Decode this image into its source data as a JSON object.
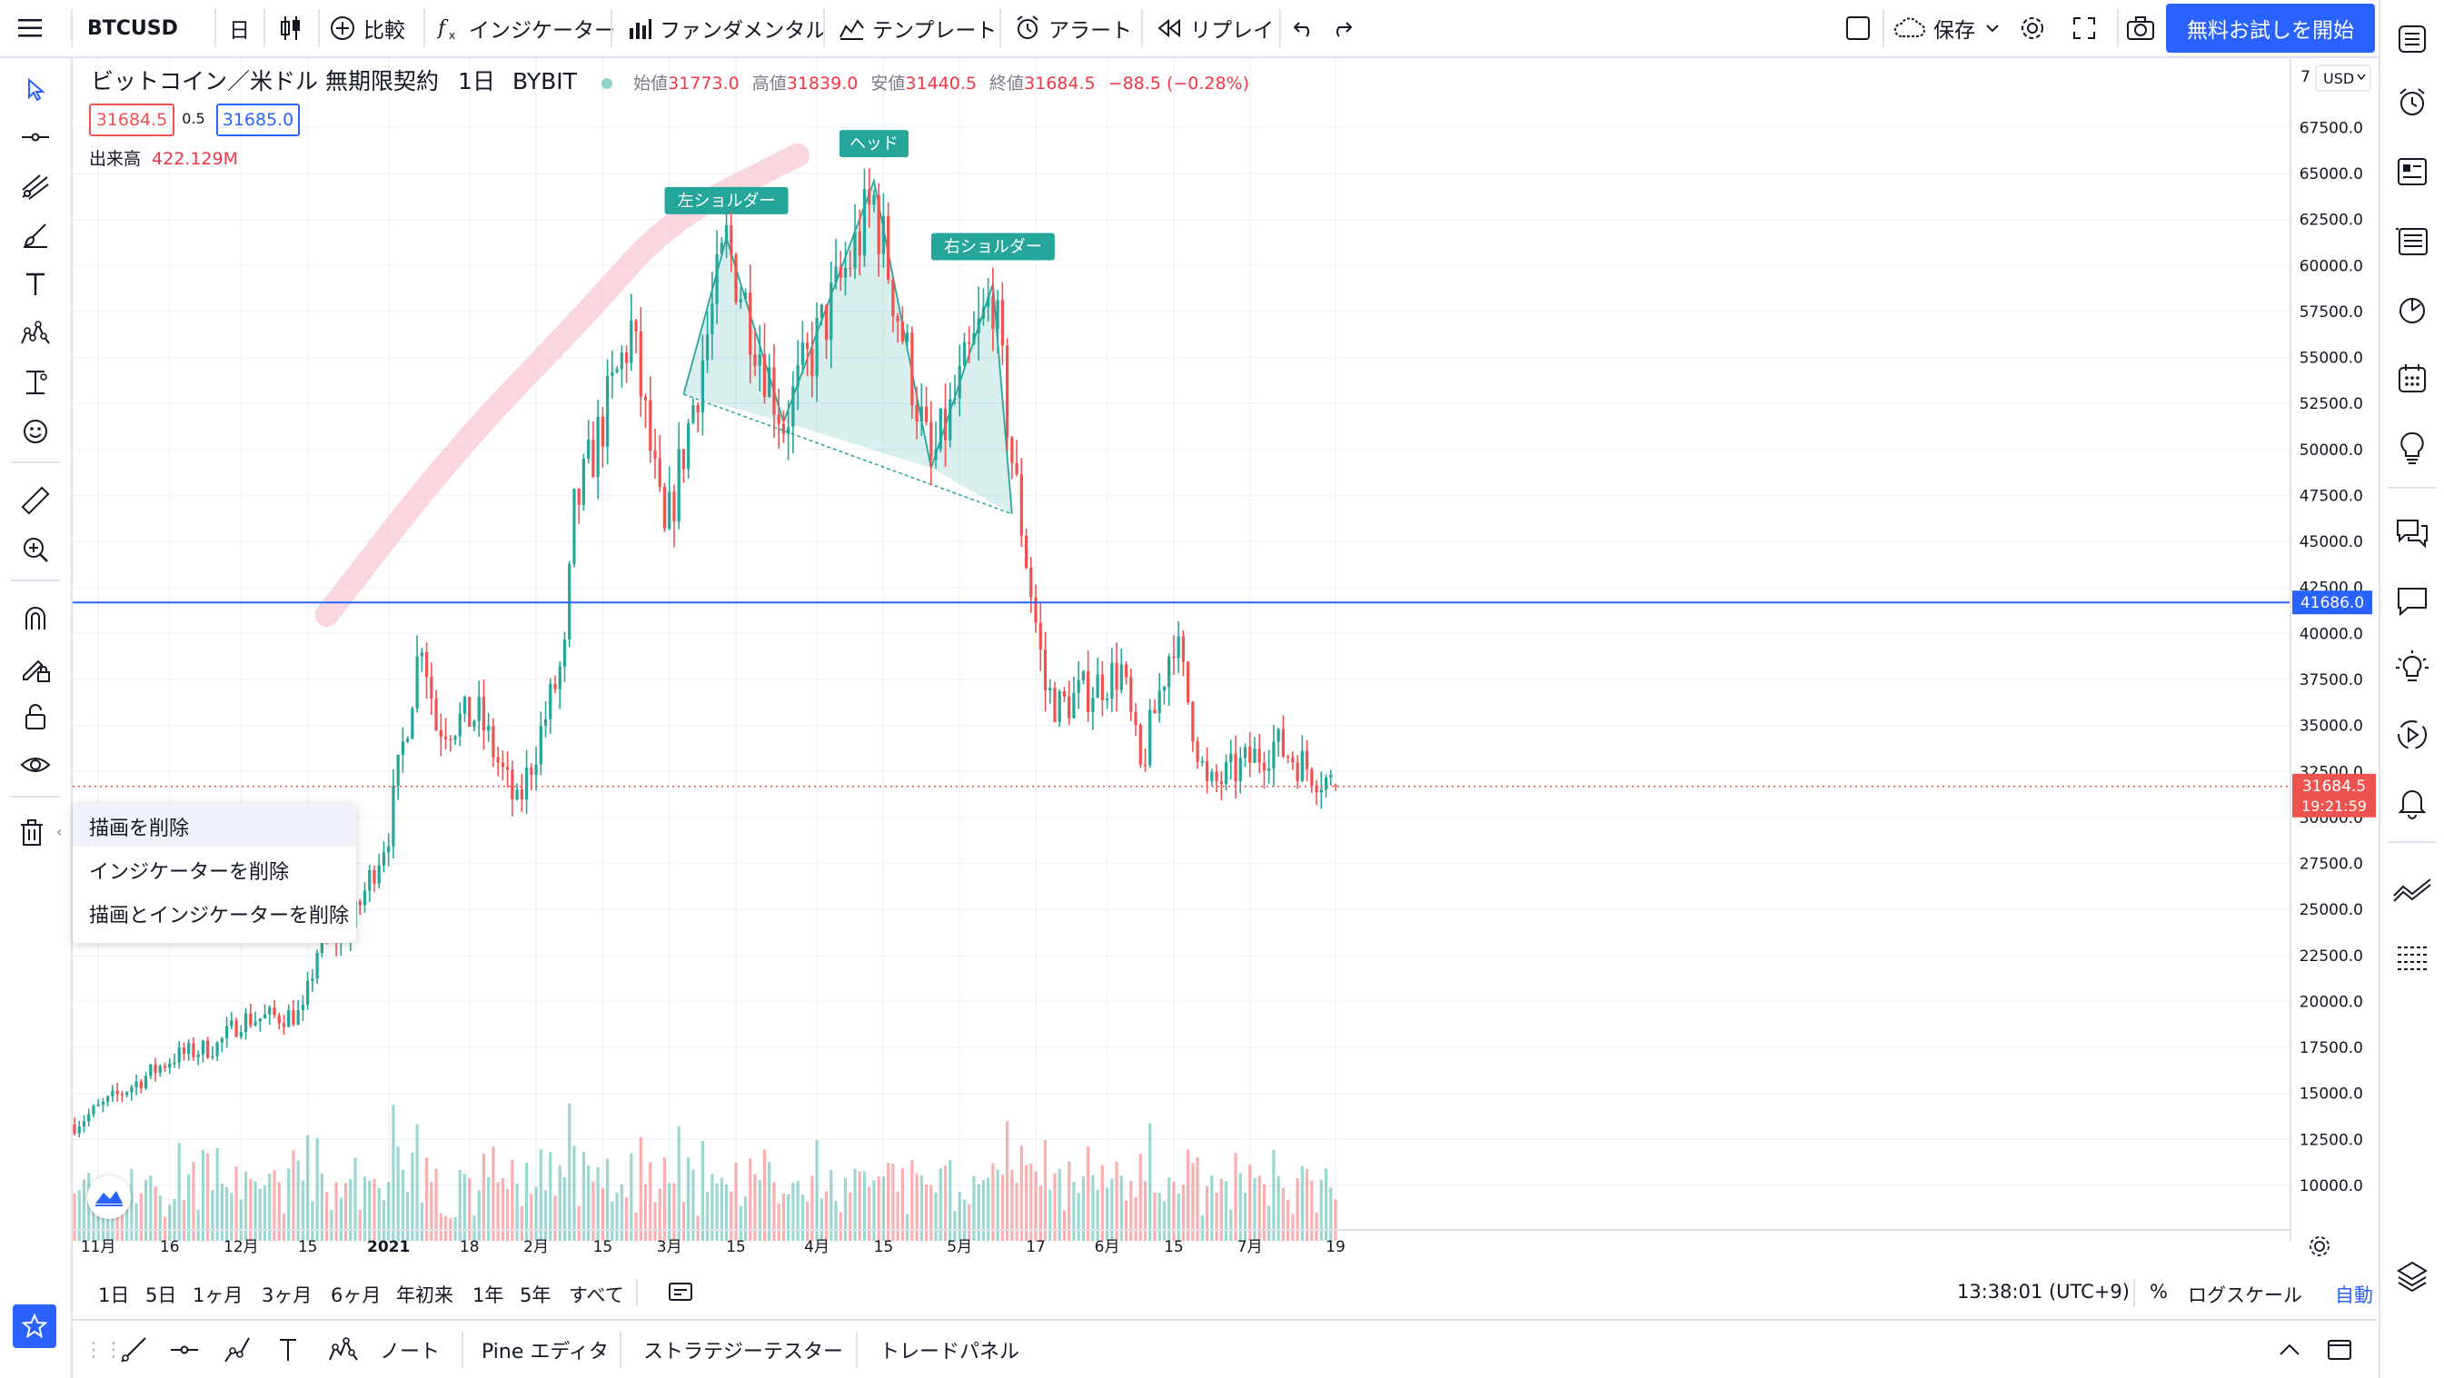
{
  "header": {
    "symbol": "BTCUSD",
    "interval": "日",
    "compare": "比較",
    "indicators": "インジケーター",
    "fundamentals": "ファンダメンタル",
    "templates": "テンプレート",
    "alert": "アラート",
    "replay": "リプレイ",
    "save": "保存",
    "trial": "無料お試しを開始"
  },
  "legend": {
    "title": "ビットコイン／米ドル 無期限契約",
    "interval": "1日",
    "exchange": "BYBIT",
    "open_label": "始値",
    "open": "31773.0",
    "high_label": "高値",
    "high": "31839.0",
    "low_label": "安値",
    "low": "31440.5",
    "close_label": "終値",
    "close": "31684.5",
    "change": "−88.5 (−0.28%)",
    "bid": "31684.5",
    "spread": "0.5",
    "ask": "31685.0",
    "volume_label": "出来高",
    "volume": "422.129M"
  },
  "pattern_labels": {
    "left_shoulder": "左ショルダー",
    "head": "ヘッド",
    "right_shoulder": "右ショルダー"
  },
  "price_scale": {
    "currency": "USD",
    "ticks": [
      "67500.0",
      "65000.0",
      "62500.0",
      "60000.0",
      "57500.0",
      "55000.0",
      "52500.0",
      "50000.0",
      "47500.0",
      "45000.0",
      "42500.0",
      "40000.0",
      "37500.0",
      "35000.0",
      "32500.0",
      "30000.0",
      "27500.0",
      "25000.0",
      "22500.0",
      "20000.0",
      "17500.0",
      "15000.0",
      "12500.0",
      "10000.0"
    ],
    "horizontal_line_label": "41686.0",
    "last_price_label": "31684.5",
    "countdown": "19:21:59",
    "top_partial": "7"
  },
  "time_axis": {
    "ticks": [
      {
        "label": "11月",
        "date": "2020-11-01",
        "bold": false
      },
      {
        "label": "16",
        "date": "2020-11-16",
        "bold": false
      },
      {
        "label": "12月",
        "date": "2020-12-01",
        "bold": false
      },
      {
        "label": "15",
        "date": "2020-12-15",
        "bold": false
      },
      {
        "label": "2021",
        "date": "2021-01-01",
        "bold": true
      },
      {
        "label": "18",
        "date": "2021-01-18",
        "bold": false
      },
      {
        "label": "2月",
        "date": "2021-02-01",
        "bold": false
      },
      {
        "label": "15",
        "date": "2021-02-15",
        "bold": false
      },
      {
        "label": "3月",
        "date": "2021-03-01",
        "bold": false
      },
      {
        "label": "15",
        "date": "2021-03-15",
        "bold": false
      },
      {
        "label": "4月",
        "date": "2021-04-01",
        "bold": false
      },
      {
        "label": "15",
        "date": "2021-04-15",
        "bold": false
      },
      {
        "label": "5月",
        "date": "2021-05-01",
        "bold": false
      },
      {
        "label": "17",
        "date": "2021-05-17",
        "bold": false
      },
      {
        "label": "6月",
        "date": "2021-06-01",
        "bold": false
      },
      {
        "label": "15",
        "date": "2021-06-15",
        "bold": false
      },
      {
        "label": "7月",
        "date": "2021-07-01",
        "bold": false
      },
      {
        "label": "19",
        "date": "2021-07-19",
        "bold": false
      }
    ]
  },
  "context_menu": {
    "items": [
      "描画を削除",
      "インジケーターを削除",
      "描画とインジケーターを削除"
    ]
  },
  "timeframes": {
    "items": [
      "1日",
      "5日",
      "1ヶ月",
      "3ヶ月",
      "6ヶ月",
      "年初来",
      "1年",
      "5年",
      "すべて"
    ],
    "clock": "13:38:01 (UTC+9)",
    "percent": "%",
    "log_scale": "ログスケール",
    "auto": "自動"
  },
  "bottom_tabs": {
    "items": [
      "ノート",
      "Pine エディタ",
      "ストラテジーテスター",
      "トレードパネル"
    ]
  },
  "colors": {
    "up": "#26a69a",
    "down": "#ef5350",
    "accent": "#2962ff",
    "pattern_fill": "#26a69a",
    "brush": "#f8c8d4"
  },
  "chart_data": {
    "type": "candlestick",
    "symbol": "BTCUSD",
    "x_range": [
      "2020-10-27",
      "2021-07-19"
    ],
    "ylim": [
      8000,
      69500
    ],
    "horizontal_line": 41686.0,
    "last_price": 31684.5,
    "key_prices": [
      {
        "date": "2020-10-27",
        "price": 13300
      },
      {
        "date": "2020-11-17",
        "price": 17000
      },
      {
        "date": "2020-11-26",
        "price": 17600
      },
      {
        "date": "2020-12-01",
        "price": 19000
      },
      {
        "date": "2020-12-14",
        "price": 19300
      },
      {
        "date": "2020-12-17",
        "price": 22800
      },
      {
        "date": "2020-12-24",
        "price": 24000
      },
      {
        "date": "2021-01-01",
        "price": 29300
      },
      {
        "date": "2021-01-08",
        "price": 40000
      },
      {
        "date": "2021-01-11",
        "price": 35000
      },
      {
        "date": "2021-01-20",
        "price": 35500
      },
      {
        "date": "2021-01-28",
        "price": 30500
      },
      {
        "date": "2021-02-07",
        "price": 38800
      },
      {
        "date": "2021-02-09",
        "price": 46500
      },
      {
        "date": "2021-02-21",
        "price": 56500
      },
      {
        "date": "2021-02-28",
        "price": 45000
      },
      {
        "date": "2021-03-13",
        "price": 61200
      },
      {
        "date": "2021-03-25",
        "price": 51500
      },
      {
        "date": "2021-04-13",
        "price": 63500
      },
      {
        "date": "2021-04-25",
        "price": 49000
      },
      {
        "date": "2021-05-08",
        "price": 58500
      },
      {
        "date": "2021-05-12",
        "price": 49500
      },
      {
        "date": "2021-05-19",
        "price": 37000
      },
      {
        "date": "2021-05-22",
        "price": 36000
      },
      {
        "date": "2021-06-04",
        "price": 38000
      },
      {
        "date": "2021-06-08",
        "price": 32500
      },
      {
        "date": "2021-06-15",
        "price": 40000
      },
      {
        "date": "2021-06-22",
        "price": 31500
      },
      {
        "date": "2021-07-06",
        "price": 34000
      },
      {
        "date": "2021-07-19",
        "price": 31684.5
      }
    ],
    "head_and_shoulders": [
      {
        "date": "2021-03-04",
        "price": 53000
      },
      {
        "date": "2021-03-13",
        "price": 61500
      },
      {
        "date": "2021-03-25",
        "price": 51500
      },
      {
        "date": "2021-04-13",
        "price": 64600
      },
      {
        "date": "2021-04-25",
        "price": 49000
      },
      {
        "date": "2021-05-08",
        "price": 59000
      },
      {
        "date": "2021-05-12",
        "price": 46500
      }
    ],
    "brush_stroke": [
      {
        "date": "2020-12-19",
        "price": 41000
      },
      {
        "date": "2021-01-15",
        "price": 50000
      },
      {
        "date": "2021-02-12",
        "price": 57500
      },
      {
        "date": "2021-03-01",
        "price": 62500
      },
      {
        "date": "2021-03-28",
        "price": 66000
      }
    ]
  }
}
